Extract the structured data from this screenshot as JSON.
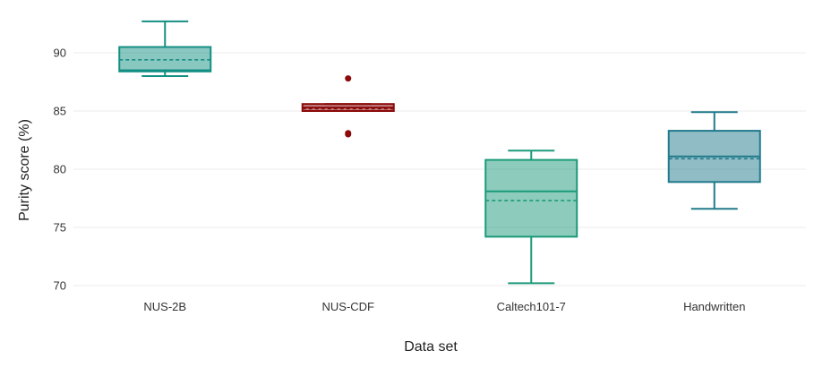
{
  "chart_data": {
    "type": "box",
    "xlabel": "Data set",
    "ylabel": "Purity score (%)",
    "ylim": [
      69,
      93
    ],
    "yticks": [
      70,
      75,
      80,
      85,
      90
    ],
    "grid": "horizontal",
    "categories": [
      "NUS-2B",
      "NUS-CDF",
      "Caltech101-7",
      "Handwritten"
    ],
    "boxes": [
      {
        "category": "NUS-2B",
        "min": 88.0,
        "q1": 88.4,
        "median": 88.5,
        "mean": 89.4,
        "q3": 90.5,
        "max": 92.7,
        "outliers": [],
        "color": "#148f83"
      },
      {
        "category": "NUS-CDF",
        "min": 85.0,
        "q1": 85.0,
        "median": 85.3,
        "mean": 85.2,
        "q3": 85.6,
        "max": 85.6,
        "outliers": [
          87.8,
          83.1,
          83.0
        ],
        "color": "#8b0a0a"
      },
      {
        "category": "Caltech101-7",
        "min": 70.2,
        "q1": 74.2,
        "median": 78.1,
        "mean": 77.3,
        "q3": 80.8,
        "max": 81.6,
        "outliers": [],
        "color": "#1c9a7a"
      },
      {
        "category": "Handwritten",
        "min": 76.6,
        "q1": 78.9,
        "median": 81.1,
        "mean": 80.9,
        "q3": 83.3,
        "max": 84.9,
        "outliers": [],
        "color": "#217a8c"
      }
    ]
  }
}
